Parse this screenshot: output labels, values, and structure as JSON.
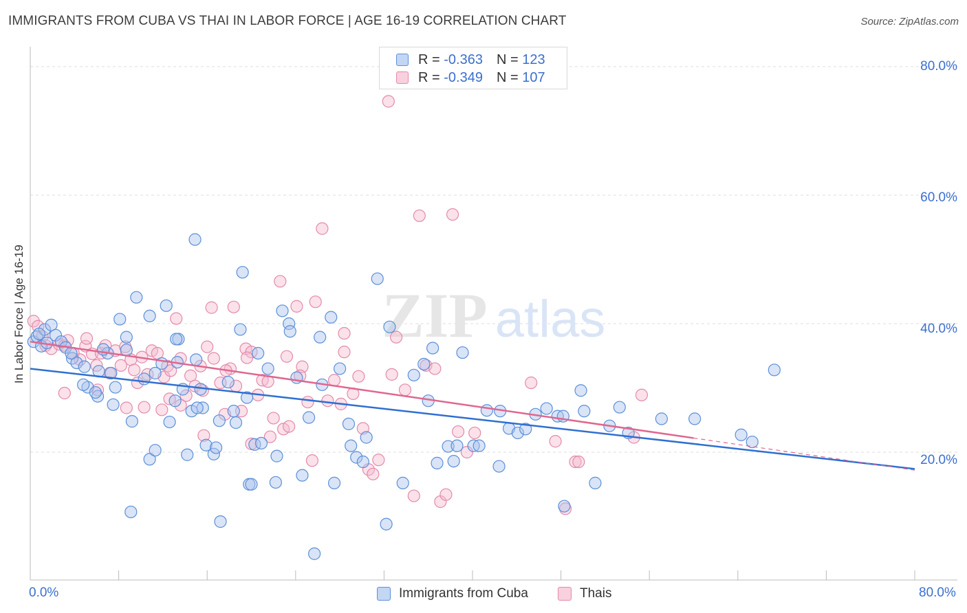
{
  "title": "IMMIGRANTS FROM CUBA VS THAI IN LABOR FORCE | AGE 16-19 CORRELATION CHART",
  "source": "Source: ZipAtlas.com",
  "watermark": {
    "zip": "ZIP",
    "atlas": "atlas"
  },
  "legend": {
    "r_label": "R =",
    "n_label": "N =",
    "rows": [
      {
        "r": "-0.363",
        "n": "123"
      },
      {
        "r": "-0.349",
        "n": "107"
      }
    ]
  },
  "colors": {
    "blue_fill": "#aac4ee",
    "blue_stroke": "#5b8fd9",
    "blue_line": "#2f6fd1",
    "pink_fill": "#f5bdd0",
    "pink_stroke": "#e48aaa",
    "pink_line": "#e0668f",
    "grid": "#dddddd",
    "tick_text": "#3b6fd0"
  },
  "chart_data": {
    "type": "scatter",
    "title": "IMMIGRANTS FROM CUBA VS THAI IN LABOR FORCE | AGE 16-19 CORRELATION CHART",
    "xlabel": "",
    "ylabel": "In Labor Force | Age 16-19",
    "xlim": [
      0,
      80
    ],
    "ylim": [
      0,
      80
    ],
    "x_tick_labels": [
      "0.0%",
      "80.0%"
    ],
    "y_tick_labels": [
      "80.0%",
      "60.0%",
      "40.0%",
      "20.0%"
    ],
    "y_ticks": [
      80,
      60,
      40,
      20
    ],
    "grid": true,
    "legend_position": "top-center",
    "series": [
      {
        "name": "Immigrants from Cuba",
        "r": -0.363,
        "n": 123,
        "trend": {
          "x": [
            0,
            80
          ],
          "y": [
            33.0,
            17.4
          ]
        },
        "points": [
          [
            0.3,
            37.2
          ],
          [
            0.6,
            38.0
          ],
          [
            1.0,
            36.5
          ],
          [
            1.3,
            39.1
          ],
          [
            1.9,
            39.8
          ],
          [
            2.3,
            38.2
          ],
          [
            2.8,
            37.2
          ],
          [
            3.2,
            36.3
          ],
          [
            3.8,
            34.6
          ],
          [
            4.2,
            33.9
          ],
          [
            4.9,
            33.3
          ],
          [
            5.2,
            30.1
          ],
          [
            4.8,
            30.5
          ],
          [
            6.1,
            28.7
          ],
          [
            5.9,
            29.3
          ],
          [
            6.2,
            32.6
          ],
          [
            7.0,
            35.4
          ],
          [
            7.5,
            27.4
          ],
          [
            7.3,
            32.3
          ],
          [
            8.1,
            40.7
          ],
          [
            8.7,
            35.9
          ],
          [
            8.7,
            37.9
          ],
          [
            9.6,
            44.1
          ],
          [
            10.3,
            31.4
          ],
          [
            10.8,
            41.2
          ],
          [
            11.3,
            32.3
          ],
          [
            11.9,
            33.8
          ],
          [
            12.3,
            42.8
          ],
          [
            13.4,
            37.6
          ],
          [
            13.2,
            37.6
          ],
          [
            13.1,
            28.0
          ],
          [
            13.8,
            29.8
          ],
          [
            14.9,
            53.1
          ],
          [
            14.6,
            26.4
          ],
          [
            15.4,
            29.8
          ],
          [
            15.6,
            26.9
          ],
          [
            15.9,
            21.1
          ],
          [
            16.6,
            19.7
          ],
          [
            17.1,
            24.9
          ],
          [
            17.9,
            30.9
          ],
          [
            18.4,
            26.4
          ],
          [
            19.2,
            48.0
          ],
          [
            19.0,
            39.1
          ],
          [
            19.6,
            28.5
          ],
          [
            20.3,
            21.2
          ],
          [
            20.6,
            35.4
          ],
          [
            20.9,
            21.4
          ],
          [
            21.5,
            33.0
          ],
          [
            22.3,
            19.4
          ],
          [
            22.8,
            42.0
          ],
          [
            23.4,
            40.0
          ],
          [
            23.5,
            38.8
          ],
          [
            24.1,
            31.6
          ],
          [
            25.2,
            25.4
          ],
          [
            26.2,
            37.9
          ],
          [
            27.2,
            41.0
          ],
          [
            28.0,
            33.0
          ],
          [
            29.5,
            19.2
          ],
          [
            30.1,
            18.5
          ],
          [
            30.4,
            22.3
          ],
          [
            31.4,
            47.0
          ],
          [
            32.5,
            39.5
          ],
          [
            32.2,
            8.8
          ],
          [
            33.7,
            15.2
          ],
          [
            34.7,
            32.0
          ],
          [
            35.6,
            33.7
          ],
          [
            36.4,
            36.2
          ],
          [
            36.8,
            18.3
          ],
          [
            37.8,
            20.9
          ],
          [
            38.3,
            18.6
          ],
          [
            39.1,
            35.5
          ],
          [
            38.6,
            21.0
          ],
          [
            40.1,
            21.0
          ],
          [
            40.6,
            21.0
          ],
          [
            41.3,
            26.5
          ],
          [
            42.4,
            17.8
          ],
          [
            42.5,
            26.4
          ],
          [
            43.3,
            23.7
          ],
          [
            44.1,
            23.0
          ],
          [
            44.8,
            23.6
          ],
          [
            45.7,
            25.9
          ],
          [
            46.7,
            26.8
          ],
          [
            47.7,
            25.6
          ],
          [
            48.2,
            25.6
          ],
          [
            48.3,
            11.6
          ],
          [
            49.8,
            29.6
          ],
          [
            50.1,
            26.4
          ],
          [
            51.1,
            15.2
          ],
          [
            52.4,
            24.1
          ],
          [
            53.3,
            27.0
          ],
          [
            54.1,
            23.0
          ],
          [
            57.1,
            25.2
          ],
          [
            60.1,
            25.2
          ],
          [
            64.3,
            22.7
          ],
          [
            65.3,
            21.6
          ],
          [
            67.3,
            32.8
          ],
          [
            16.8,
            20.7
          ],
          [
            19.8,
            15.0
          ],
          [
            9.2,
            24.8
          ],
          [
            10.8,
            18.9
          ],
          [
            11.3,
            20.3
          ],
          [
            12.6,
            24.7
          ],
          [
            14.2,
            19.6
          ],
          [
            15.1,
            26.9
          ],
          [
            18.6,
            24.6
          ],
          [
            22.2,
            15.3
          ],
          [
            24.6,
            16.4
          ],
          [
            25.7,
            4.2
          ],
          [
            27.5,
            15.2
          ],
          [
            28.8,
            24.4
          ],
          [
            13.3,
            34.0
          ],
          [
            9.1,
            10.7
          ],
          [
            17.2,
            9.2
          ],
          [
            20.0,
            15.0
          ],
          [
            26.4,
            30.5
          ],
          [
            29.0,
            21.0
          ],
          [
            3.7,
            35.4
          ],
          [
            6.6,
            36.0
          ],
          [
            1.5,
            37.0
          ],
          [
            0.8,
            38.4
          ],
          [
            7.7,
            30.1
          ],
          [
            15.0,
            34.4
          ],
          [
            36.0,
            28.0
          ]
        ]
      },
      {
        "name": "Thais",
        "r": -0.349,
        "n": 107,
        "trend": {
          "x": [
            0,
            80
          ],
          "y": [
            37.2,
            17.2
          ]
        },
        "trend_solid_to_x": 60,
        "points": [
          [
            0.3,
            40.4
          ],
          [
            0.7,
            39.6
          ],
          [
            1.1,
            38.0
          ],
          [
            1.4,
            36.6
          ],
          [
            1.9,
            36.1
          ],
          [
            2.6,
            36.8
          ],
          [
            3.1,
            36.6
          ],
          [
            3.4,
            37.4
          ],
          [
            3.9,
            35.4
          ],
          [
            4.5,
            34.4
          ],
          [
            5.0,
            36.5
          ],
          [
            5.1,
            37.7
          ],
          [
            5.6,
            35.3
          ],
          [
            6.0,
            33.5
          ],
          [
            6.4,
            35.4
          ],
          [
            6.8,
            36.6
          ],
          [
            7.2,
            32.3
          ],
          [
            7.7,
            35.8
          ],
          [
            8.2,
            33.5
          ],
          [
            8.6,
            36.4
          ],
          [
            9.1,
            34.4
          ],
          [
            9.4,
            32.8
          ],
          [
            9.7,
            30.8
          ],
          [
            10.1,
            34.8
          ],
          [
            10.6,
            32.1
          ],
          [
            11.0,
            35.8
          ],
          [
            11.5,
            35.4
          ],
          [
            12.1,
            31.7
          ],
          [
            12.4,
            33.4
          ],
          [
            12.7,
            32.7
          ],
          [
            13.2,
            40.8
          ],
          [
            13.6,
            34.6
          ],
          [
            14.1,
            28.8
          ],
          [
            14.5,
            31.9
          ],
          [
            14.9,
            30.3
          ],
          [
            15.4,
            33.4
          ],
          [
            15.6,
            29.6
          ],
          [
            16.0,
            36.4
          ],
          [
            16.4,
            42.5
          ],
          [
            16.6,
            34.6
          ],
          [
            17.2,
            30.8
          ],
          [
            17.6,
            25.9
          ],
          [
            18.1,
            33.0
          ],
          [
            18.4,
            42.6
          ],
          [
            18.6,
            30.3
          ],
          [
            19.1,
            26.4
          ],
          [
            19.5,
            36.1
          ],
          [
            20.0,
            35.6
          ],
          [
            20.6,
            28.9
          ],
          [
            21.0,
            31.2
          ],
          [
            21.5,
            31.0
          ],
          [
            22.0,
            25.3
          ],
          [
            22.6,
            46.6
          ],
          [
            22.9,
            23.6
          ],
          [
            23.2,
            34.9
          ],
          [
            24.1,
            42.7
          ],
          [
            24.6,
            33.3
          ],
          [
            25.1,
            27.8
          ],
          [
            25.8,
            43.4
          ],
          [
            26.4,
            54.8
          ],
          [
            26.9,
            28.0
          ],
          [
            27.5,
            31.2
          ],
          [
            28.1,
            27.5
          ],
          [
            28.4,
            38.5
          ],
          [
            29.2,
            29.1
          ],
          [
            29.7,
            31.8
          ],
          [
            30.1,
            23.7
          ],
          [
            30.6,
            17.3
          ],
          [
            31.0,
            16.6
          ],
          [
            32.7,
            32.1
          ],
          [
            32.4,
            74.6
          ],
          [
            33.1,
            37.9
          ],
          [
            33.9,
            29.7
          ],
          [
            34.7,
            13.2
          ],
          [
            35.2,
            56.8
          ],
          [
            35.8,
            33.5
          ],
          [
            36.6,
            33.0
          ],
          [
            37.1,
            12.3
          ],
          [
            37.6,
            13.4
          ],
          [
            38.2,
            57.0
          ],
          [
            38.7,
            23.2
          ],
          [
            39.5,
            20.0
          ],
          [
            40.2,
            23.0
          ],
          [
            45.3,
            30.8
          ],
          [
            47.5,
            21.7
          ],
          [
            48.4,
            11.2
          ],
          [
            49.3,
            18.5
          ],
          [
            49.6,
            18.5
          ],
          [
            54.6,
            22.3
          ],
          [
            55.3,
            28.9
          ],
          [
            12.6,
            28.3
          ],
          [
            8.7,
            26.9
          ],
          [
            6.1,
            29.7
          ],
          [
            3.1,
            29.2
          ],
          [
            20.0,
            21.3
          ],
          [
            21.7,
            22.4
          ],
          [
            23.4,
            24.0
          ],
          [
            25.5,
            18.7
          ],
          [
            28.4,
            35.6
          ],
          [
            31.5,
            18.8
          ],
          [
            10.3,
            27.0
          ],
          [
            13.6,
            27.3
          ],
          [
            17.7,
            32.7
          ],
          [
            19.6,
            34.7
          ],
          [
            24.4,
            31.9
          ],
          [
            15.7,
            22.6
          ],
          [
            11.9,
            26.6
          ]
        ]
      }
    ]
  }
}
